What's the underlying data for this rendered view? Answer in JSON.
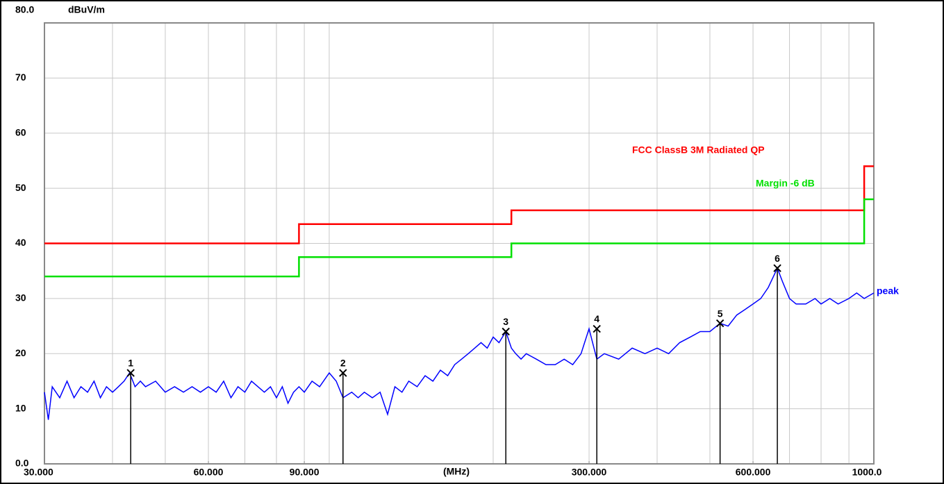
{
  "chart_data": {
    "type": "line",
    "y_label": "dBuV/m",
    "x_label": "(MHz)",
    "xlog": true,
    "xlim": [
      30,
      1000
    ],
    "xticks": [
      {
        "value": 30,
        "label": "30.000"
      },
      {
        "value": 60,
        "label": "60.000"
      },
      {
        "value": 90,
        "label": "90.000"
      },
      {
        "value": 300,
        "label": "300.000"
      },
      {
        "value": 600,
        "label": "600.000"
      },
      {
        "value": 1000,
        "label": "1000.0"
      }
    ],
    "xgrid": [
      40,
      50,
      60,
      70,
      80,
      90,
      100,
      200,
      300,
      400,
      500,
      600,
      700,
      800,
      900
    ],
    "ylim": [
      0,
      80
    ],
    "yticks": [
      {
        "value": 0,
        "label": "0.0"
      },
      10,
      20,
      30,
      40,
      50,
      60,
      70,
      {
        "value": 80,
        "label": "80.0"
      }
    ],
    "grid": true,
    "series": [
      {
        "name": "FCC  ClassB 3M Radiated QP",
        "color": "#ff0000",
        "x": [
          30,
          88,
          88,
          216,
          216,
          960,
          960,
          1000
        ],
        "values": [
          40,
          40,
          43.5,
          43.5,
          46,
          46,
          54,
          54
        ]
      },
      {
        "name": "Margin -6 dB",
        "color": "#00e000",
        "x": [
          30,
          88,
          88,
          216,
          216,
          960,
          960,
          1000
        ],
        "values": [
          34,
          34,
          37.5,
          37.5,
          40,
          40,
          48,
          48
        ]
      },
      {
        "name": "peak",
        "color": "#0000ff",
        "x": [
          30,
          30.5,
          31,
          32,
          33,
          34,
          35,
          36,
          37,
          38,
          39,
          40,
          41,
          42,
          43,
          44,
          45,
          46,
          48,
          50,
          52,
          54,
          56,
          58,
          60,
          62,
          64,
          66,
          68,
          70,
          72,
          74,
          76,
          78,
          80,
          82,
          84,
          86,
          88,
          90,
          93,
          96,
          100,
          103,
          106,
          110,
          113,
          116,
          120,
          124,
          128,
          132,
          136,
          140,
          145,
          150,
          155,
          160,
          165,
          170,
          175,
          180,
          185,
          190,
          195,
          200,
          205,
          211,
          216,
          220,
          225,
          230,
          240,
          250,
          260,
          270,
          280,
          290,
          300,
          310,
          320,
          340,
          360,
          380,
          400,
          420,
          440,
          460,
          480,
          500,
          522,
          540,
          560,
          580,
          600,
          620,
          640,
          665,
          680,
          700,
          720,
          750,
          780,
          800,
          830,
          860,
          900,
          930,
          960,
          1000
        ],
        "values": [
          13,
          8,
          14,
          12,
          15,
          12,
          14,
          13,
          15,
          12,
          14,
          13,
          14,
          15,
          16.5,
          14,
          15,
          14,
          15,
          13,
          14,
          13,
          14,
          13,
          14,
          13,
          15,
          12,
          14,
          13,
          15,
          14,
          13,
          14,
          12,
          14,
          11,
          13,
          14,
          13,
          15,
          14,
          16.5,
          15,
          12,
          13,
          12,
          13,
          12,
          13,
          9,
          14,
          13,
          15,
          14,
          16,
          15,
          17,
          16,
          18,
          19,
          20,
          21,
          22,
          21,
          23,
          22,
          24,
          21,
          20,
          19,
          20,
          19,
          18,
          18,
          19,
          18,
          20,
          24.5,
          19,
          20,
          19,
          21,
          20,
          21,
          20,
          22,
          23,
          24,
          24,
          25.5,
          25,
          27,
          28,
          29,
          30,
          32,
          35.5,
          33,
          30,
          29,
          29,
          30,
          29,
          30,
          29,
          30,
          31,
          30,
          31
        ]
      }
    ],
    "markers": {
      "labels": [
        "1",
        "2",
        "3",
        "4",
        "5",
        "6"
      ],
      "x": [
        43.2,
        106,
        211,
        310,
        522,
        665
      ],
      "values": [
        16.5,
        16.5,
        24,
        24.5,
        25.5,
        35.5
      ],
      "color": "#000000"
    }
  }
}
